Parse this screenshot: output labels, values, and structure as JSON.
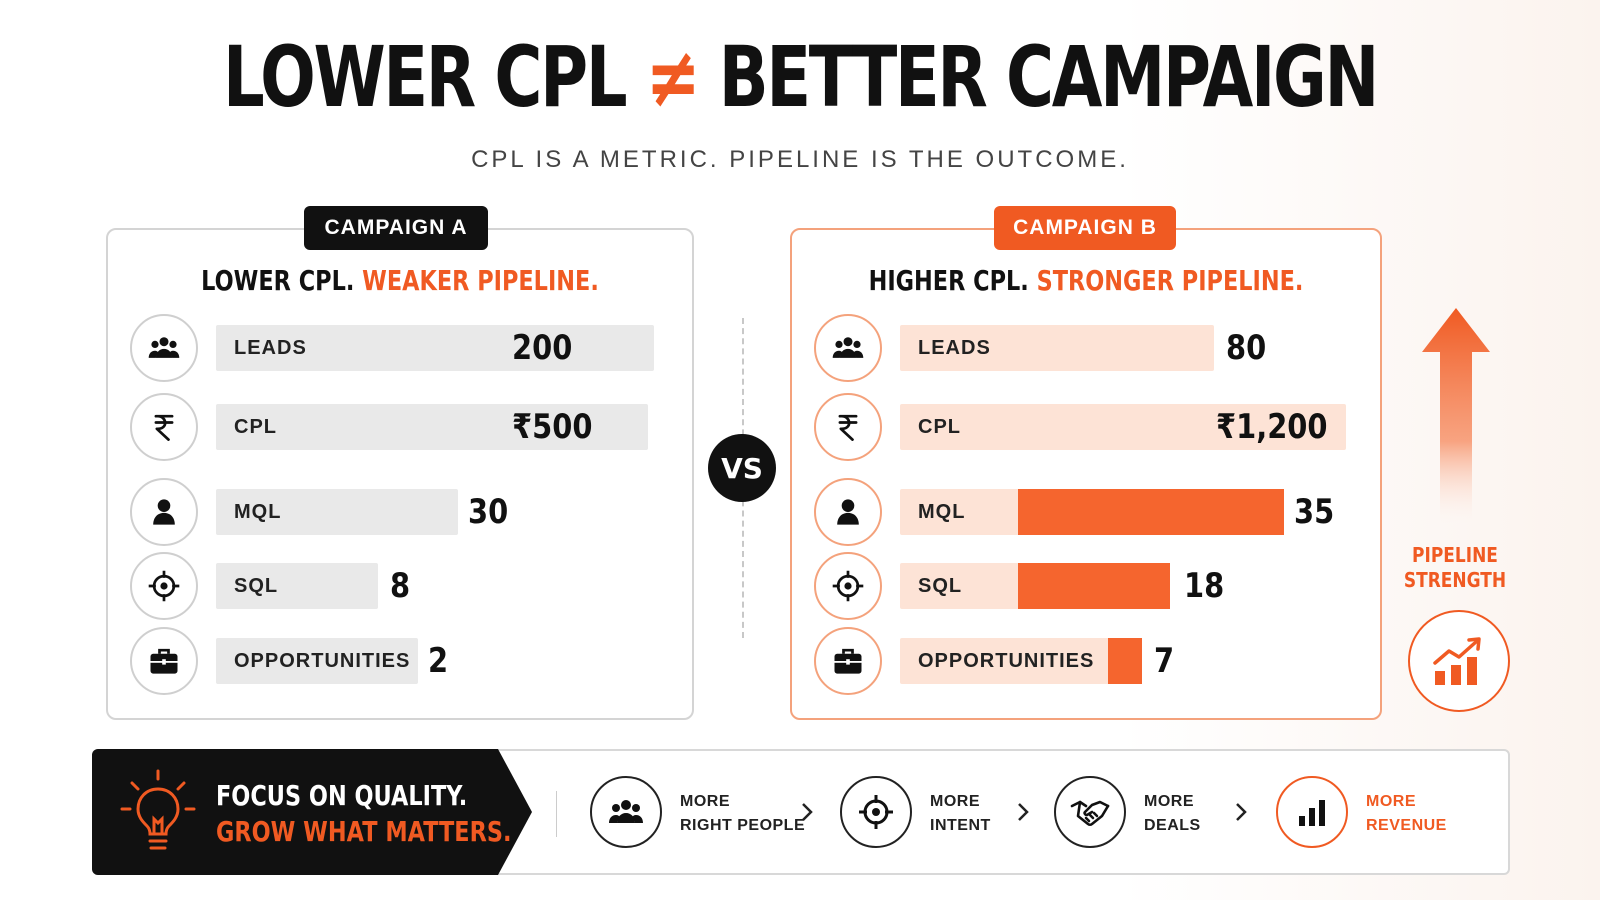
{
  "header": {
    "title_left": "LOWER CPL",
    "title_neq": "≠",
    "title_right": "BETTER CAMPAIGN",
    "subtitle": "CPL IS A METRIC. PIPELINE IS THE OUTCOME."
  },
  "campaign_a": {
    "tag": "CAMPAIGN A",
    "title_plain": "LOWER CPL.",
    "title_highlight": "WEAKER PIPELINE.",
    "rows": [
      {
        "icon": "people-icon",
        "label": "LEADS",
        "value": "200"
      },
      {
        "icon": "rupee-icon",
        "label": "CPL",
        "value": "₹500"
      },
      {
        "icon": "person-icon",
        "label": "MQL",
        "value": "30"
      },
      {
        "icon": "target-icon",
        "label": "SQL",
        "value": "8"
      },
      {
        "icon": "briefcase-icon",
        "label": "OPPORTUNITIES",
        "value": "2"
      }
    ]
  },
  "campaign_b": {
    "tag": "CAMPAIGN B",
    "title_plain": "HIGHER CPL.",
    "title_highlight": "STRONGER PIPELINE.",
    "rows": [
      {
        "icon": "people-icon",
        "label": "LEADS",
        "value": "80"
      },
      {
        "icon": "rupee-icon",
        "label": "CPL",
        "value": "₹1,200"
      },
      {
        "icon": "person-icon",
        "label": "MQL",
        "value": "35"
      },
      {
        "icon": "target-icon",
        "label": "SQL",
        "value": "18"
      },
      {
        "icon": "briefcase-icon",
        "label": "OPPORTUNITIES",
        "value": "7"
      }
    ]
  },
  "vs_label": "VS",
  "strength": {
    "line1": "PIPELINE",
    "line2": "STRENGTH"
  },
  "footer": {
    "focus_line1": "FOCUS ON QUALITY.",
    "focus_line2": "GROW WHAT MATTERS.",
    "steps": [
      {
        "icon": "people-icon",
        "line1": "MORE",
        "line2": "RIGHT PEOPLE"
      },
      {
        "icon": "target-icon",
        "line1": "MORE",
        "line2": "INTENT"
      },
      {
        "icon": "handshake-icon",
        "line1": "MORE",
        "line2": "DEALS"
      },
      {
        "icon": "bar-chart-icon",
        "line1": "MORE",
        "line2": "REVENUE"
      }
    ]
  },
  "colors": {
    "accent": "#f05a22",
    "dark": "#111111",
    "light_accent": "#fde3d6"
  }
}
